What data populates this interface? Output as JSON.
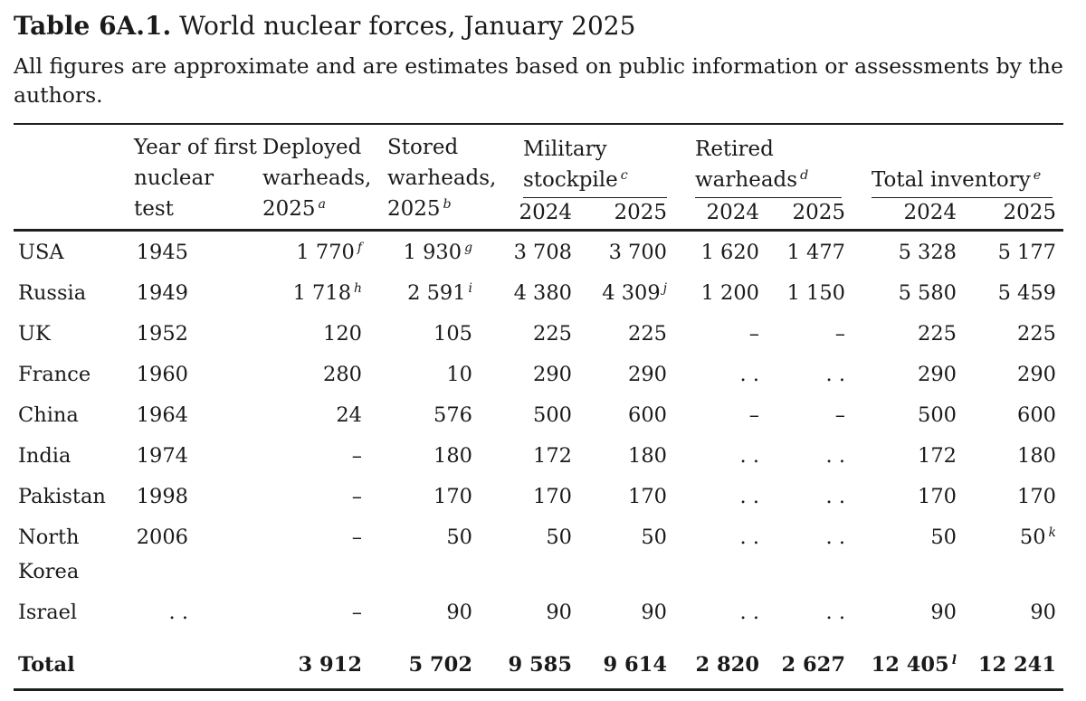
{
  "colors": {
    "background": "#ffffff",
    "text": "#1a1a1a",
    "rule": "#1e1e1e"
  },
  "title": {
    "label": "Table 6A.1.",
    "text": " World nuclear forces, January 2025"
  },
  "subtitle": "All figures are approximate and are estimates based on public information or assessments by the authors.",
  "table": {
    "column_keys": [
      "country",
      "year",
      "deployed",
      "stored",
      "mil2024",
      "mil2025",
      "ret2024",
      "ret2025",
      "tot2024",
      "tot2025"
    ],
    "header": {
      "country": {
        "lines": [
          ""
        ]
      },
      "year": {
        "lines": [
          "Year of first",
          "nuclear",
          "test"
        ]
      },
      "deployed": {
        "lines": [
          "Deployed",
          "warheads,",
          "2025"
        ],
        "sup": "a"
      },
      "stored": {
        "lines": [
          "Stored",
          "warheads,",
          "2025"
        ],
        "sup": "b"
      },
      "groups": [
        {
          "label": {
            "lines": [
              "Military",
              "stockpile"
            ],
            "sup": "c"
          },
          "years": [
            "2024",
            "2025"
          ]
        },
        {
          "label": {
            "lines": [
              "Retired",
              "warheads"
            ],
            "sup": "d"
          },
          "years": [
            "2024",
            "2025"
          ]
        },
        {
          "label": {
            "lines": [
              "Total inventory"
            ],
            "sup": "e"
          },
          "years": [
            "2024",
            "2025"
          ]
        }
      ]
    },
    "rows": [
      {
        "country": "USA",
        "year": "1945",
        "deployed": {
          "v": "1 770",
          "sup": "f"
        },
        "stored": {
          "v": "1 930",
          "sup": "g"
        },
        "mil2024": "3 708",
        "mil2025": "3 700",
        "ret2024": "1 620",
        "ret2025": "1 477",
        "tot2024": "5 328",
        "tot2025": "5 177"
      },
      {
        "country": "Russia",
        "year": "1949",
        "deployed": {
          "v": "1 718",
          "sup": "h"
        },
        "stored": {
          "v": "2 591",
          "sup": "i"
        },
        "mil2024": "4 380",
        "mil2025": {
          "v": "4 309",
          "sup": "j"
        },
        "ret2024": "1 200",
        "ret2025": "1 150",
        "tot2024": "5 580",
        "tot2025": "5 459"
      },
      {
        "country": "UK",
        "year": "1952",
        "deployed": "120",
        "stored": "105",
        "mil2024": "225",
        "mil2025": "225",
        "ret2024": "–",
        "ret2025": "–",
        "tot2024": "225",
        "tot2025": "225"
      },
      {
        "country": "France",
        "year": "1960",
        "deployed": "280",
        "stored": "10",
        "mil2024": "290",
        "mil2025": "290",
        "ret2024": ". .",
        "ret2025": ". .",
        "tot2024": "290",
        "tot2025": "290"
      },
      {
        "country": "China",
        "year": "1964",
        "deployed": "24",
        "stored": "576",
        "mil2024": "500",
        "mil2025": "600",
        "ret2024": "–",
        "ret2025": "–",
        "tot2024": "500",
        "tot2025": "600"
      },
      {
        "country": "India",
        "year": "1974",
        "deployed": "–",
        "stored": "180",
        "mil2024": "172",
        "mil2025": "180",
        "ret2024": ". .",
        "ret2025": ". .",
        "tot2024": "172",
        "tot2025": "180"
      },
      {
        "country": "Pakistan",
        "year": "1998",
        "deployed": "–",
        "stored": "170",
        "mil2024": "170",
        "mil2025": "170",
        "ret2024": ". .",
        "ret2025": ". .",
        "tot2024": "170",
        "tot2025": "170"
      },
      {
        "country": "North Korea",
        "year": "2006",
        "deployed": "–",
        "stored": "50",
        "mil2024": "50",
        "mil2025": "50",
        "ret2024": ". .",
        "ret2025": ". .",
        "tot2024": "50",
        "tot2025": {
          "v": "50",
          "sup": "k"
        }
      },
      {
        "country": "Israel",
        "year": ". .",
        "deployed": "–",
        "stored": "90",
        "mil2024": "90",
        "mil2025": "90",
        "ret2024": ". .",
        "ret2025": ". .",
        "tot2024": "90",
        "tot2025": "90"
      }
    ],
    "total": {
      "country": "Total",
      "year": "",
      "deployed": "3 912",
      "stored": "5 702",
      "mil2024": "9 585",
      "mil2025": "9 614",
      "ret2024": "2 820",
      "ret2025": "2 627",
      "tot2024": {
        "v": "12 405",
        "sup": "l"
      },
      "tot2025": "12 241"
    }
  }
}
